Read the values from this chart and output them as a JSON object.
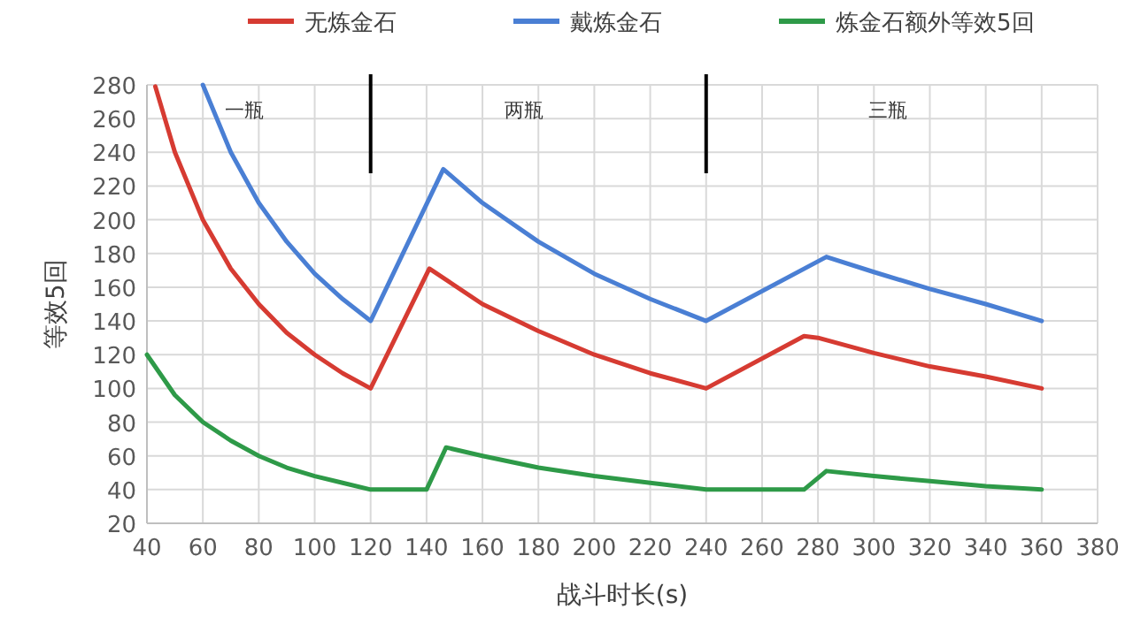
{
  "chart_data": {
    "type": "line",
    "xlabel": "战斗时长(s)",
    "ylabel": "等效5回",
    "xlim": [
      40,
      380
    ],
    "xticks": [
      40,
      60,
      80,
      100,
      120,
      140,
      160,
      180,
      200,
      220,
      240,
      260,
      280,
      300,
      320,
      340,
      360,
      380
    ],
    "ylim": [
      20,
      280
    ],
    "yticks": [
      20,
      40,
      60,
      80,
      100,
      120,
      140,
      160,
      180,
      200,
      220,
      240,
      260,
      280
    ],
    "grid": true,
    "legend": "top",
    "line_style": "solid",
    "marker": "none",
    "series": [
      {
        "name": "无炼金石",
        "color": "#d63b32",
        "x": [
          43,
          50,
          60,
          70,
          80,
          90,
          100,
          110,
          120,
          141,
          160,
          180,
          200,
          220,
          240,
          275,
          280,
          300,
          320,
          340,
          360
        ],
        "values": [
          279,
          240,
          200,
          171,
          150,
          133,
          120,
          109,
          100,
          171,
          150,
          134,
          120,
          109,
          100,
          131,
          130,
          121,
          113,
          107,
          100
        ]
      },
      {
        "name": "戴炼金石",
        "color": "#4a7fd4",
        "x": [
          60,
          70,
          80,
          90,
          100,
          110,
          120,
          146,
          160,
          180,
          200,
          220,
          240,
          283,
          300,
          320,
          340,
          360
        ],
        "values": [
          280,
          240,
          210,
          187,
          168,
          153,
          140,
          230,
          210,
          187,
          168,
          153,
          140,
          178,
          169,
          159,
          150,
          140
        ]
      },
      {
        "name": "炼金石额外等效5回",
        "color": "#2e9a48",
        "x": [
          40,
          50,
          60,
          70,
          80,
          90,
          100,
          110,
          120,
          140,
          147,
          160,
          180,
          200,
          220,
          240,
          275,
          283,
          300,
          320,
          340,
          360
        ],
        "values": [
          120,
          96,
          80,
          69,
          60,
          53,
          48,
          44,
          40,
          40,
          65,
          60,
          53,
          48,
          44,
          40,
          40,
          51,
          48,
          45,
          42,
          40
        ]
      }
    ],
    "ref_lines": [
      {
        "axis": "x",
        "value": 120,
        "color": "#000000"
      },
      {
        "axis": "x",
        "value": 240,
        "color": "#000000"
      }
    ],
    "annotations": [
      "一瓶",
      "两瓶",
      "三瓶"
    ]
  }
}
